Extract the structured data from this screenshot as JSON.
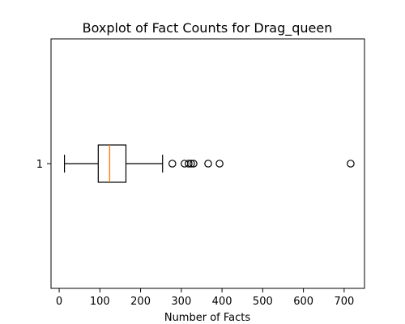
{
  "chart_data": {
    "type": "boxplot",
    "orientation": "horizontal",
    "title": "Boxplot of Fact Counts for Drag_queen",
    "xlabel": "Number of Facts",
    "ylabel": "",
    "xlim": [
      -20,
      750
    ],
    "xticks": [
      0,
      100,
      200,
      300,
      400,
      500,
      600,
      700
    ],
    "category_labels": [
      "1"
    ],
    "box": {
      "whisker_low": 13,
      "q1": 96,
      "median": 124,
      "q3": 164,
      "whisker_high": 254
    },
    "outliers": [
      278,
      308,
      318,
      324,
      330,
      366,
      394,
      716
    ],
    "colors": {
      "box": "#000000",
      "median": "#ff7f0e",
      "outlier": "#000000"
    }
  }
}
